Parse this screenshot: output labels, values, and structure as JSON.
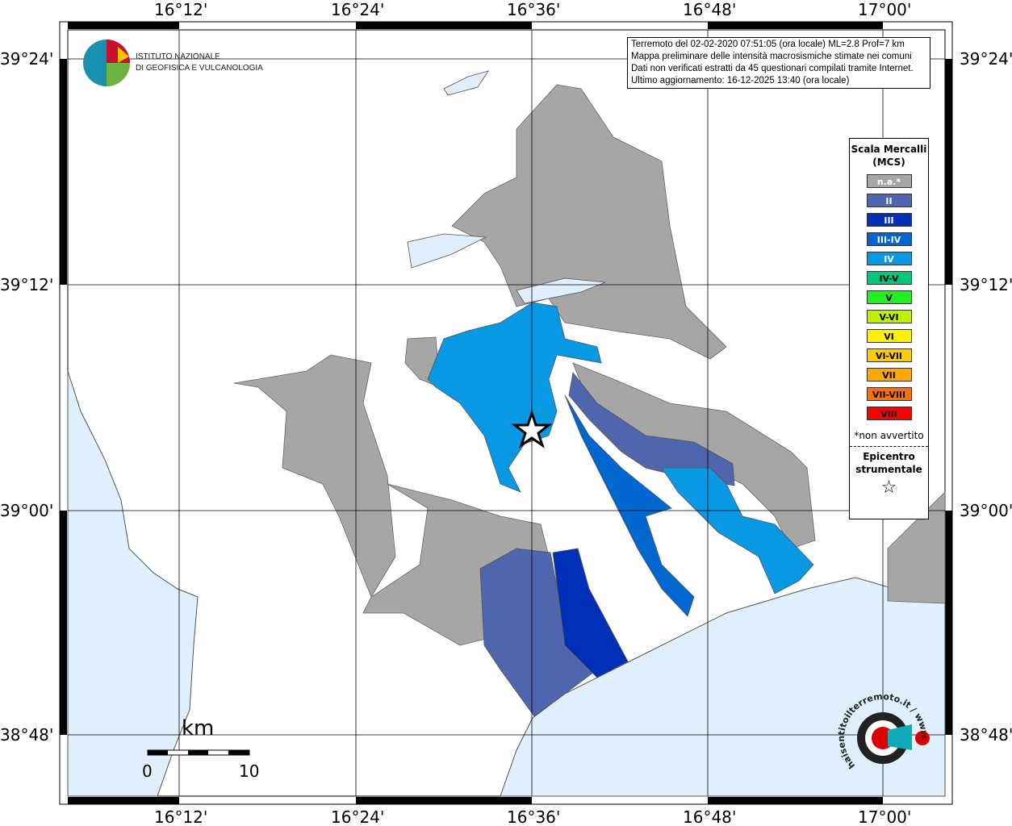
{
  "logo": {
    "text": "ISTITUTO NAZIONALE\nDI GEOFISICA E VULCANOLOGIA",
    "line1": "ISTITUTO NAZIONALE",
    "line2": "DI GEOFISICA E VULCANOLOGIA"
  },
  "info": {
    "line1": "Terremoto del 02-02-2020 07:51:05 (ora locale) ML=2.8 Prof=7 km",
    "line2": "Mappa preliminare delle intensità macrosismiche stimate nei comuni",
    "line3": "Dati non verificati estratti da 45 questionari compilati tramite Internet.",
    "line4": "Ultimo aggiornamento: 16-12-2025 13:40 (ora locale)"
  },
  "axes": {
    "lon": [
      "16°12'",
      "16°24'",
      "16°36'",
      "16°48'",
      "17°00'"
    ],
    "lat": [
      "39°24'",
      "39°12'",
      "39°00'",
      "38°48'"
    ]
  },
  "legend": {
    "title": "Scala Mercalli (MCS)",
    "items": [
      {
        "label": "n.a.*",
        "color": "#a6a6a6",
        "text": "#fff"
      },
      {
        "label": "II",
        "color": "#4f66ae",
        "text": "#fff"
      },
      {
        "label": "III",
        "color": "#0030b8",
        "text": "#fff"
      },
      {
        "label": "III-IV",
        "color": "#0066d0",
        "text": "#fff"
      },
      {
        "label": "IV",
        "color": "#0898e4",
        "text": "#fff"
      },
      {
        "label": "IV-V",
        "color": "#00c878",
        "text": "#000"
      },
      {
        "label": "V",
        "color": "#22f022",
        "text": "#000"
      },
      {
        "label": "V-VI",
        "color": "#c0f000",
        "text": "#000"
      },
      {
        "label": "VI",
        "color": "#fff000",
        "text": "#000"
      },
      {
        "label": "VI-VII",
        "color": "#ffcc00",
        "text": "#000"
      },
      {
        "label": "VII",
        "color": "#ffa800",
        "text": "#000"
      },
      {
        "label": "VII-VIII",
        "color": "#ff7000",
        "text": "#000"
      },
      {
        "label": "VIII",
        "color": "#ff0000",
        "text": "#000"
      }
    ],
    "note": "*non avvertito",
    "epicenter_label": "Epicentro strumentale"
  },
  "scale_bar": {
    "unit": "km",
    "min": "0",
    "max": "10"
  },
  "brand": {
    "text": "haisentitoilterremoto.it / www."
  },
  "colors": {
    "sea": "#dff0fc",
    "na": "#a6a6a6",
    "II": "#4f66ae",
    "III": "#0030b8",
    "III-IV": "#0066d0",
    "IV": "#0898e4"
  }
}
